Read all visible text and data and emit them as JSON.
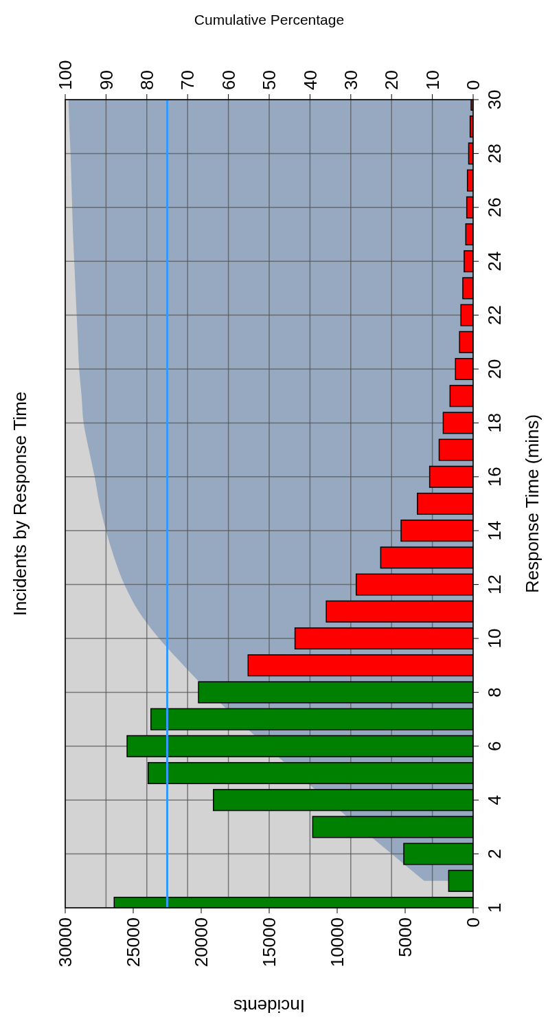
{
  "chart_data": {
    "type": "bar",
    "orientation": "horizontal",
    "title": "Incidents by Response Time",
    "ylabel": "Response Time (mins)",
    "xlabel": "Incidents",
    "x2label": "Cumulative Percentage",
    "categories": [
      "30",
      null,
      "28",
      null,
      "26",
      null,
      "24",
      null,
      "22",
      null,
      "20",
      null,
      "18",
      null,
      "16",
      null,
      "14",
      null,
      "12",
      null,
      "10",
      null,
      "8",
      null,
      "6",
      null,
      "4",
      null,
      "2",
      null,
      "1"
    ],
    "series": [
      {
        "type": "area",
        "axis": "x2",
        "color": "#97a9c0",
        "values": [
          99.2,
          99,
          98.7,
          98.5,
          98.3,
          98.1,
          97.8,
          97.5,
          97.2,
          96.9,
          96.6,
          96,
          95.5,
          94.2,
          92.8,
          91.6,
          90,
          88,
          85.5,
          82,
          77,
          71,
          null,
          null,
          null,
          null,
          null,
          null,
          null,
          12,
          null
        ]
      },
      {
        "type": "bar",
        "colors": [
          "#ff0000",
          "#ff0000",
          "#ff0000",
          "#ff0000",
          "#ff0000",
          "#ff0000",
          "#ff0000",
          "#ff0000",
          "#ff0000",
          "#ff0000",
          "#ff0000",
          "#ff0000",
          "#ff0000",
          "#ff0000",
          "#ff0000",
          "#ff0000",
          "#ff0000",
          "#ff0000",
          "#ff0000",
          "#ff0000",
          "#ff0000",
          "#ff0000",
          "#008000",
          "#008000",
          "#008000",
          "#008000",
          "#008000",
          "#008000",
          "#008000",
          "#008000",
          "#008000"
        ],
        "values": [
          150,
          220,
          330,
          420,
          470,
          540,
          660,
          760,
          900,
          1000,
          1300,
          1700,
          2200,
          2500,
          3200,
          4100,
          5300,
          6800,
          8600,
          10800,
          13100,
          16550,
          20200,
          23700,
          25450,
          23900,
          19100,
          11800,
          5100,
          1800,
          26400
        ]
      }
    ],
    "xlim": [
      30000,
      0
    ],
    "xticks": [
      30000,
      25000,
      20000,
      15000,
      10000,
      5000,
      0
    ],
    "x2lim": [
      100,
      0
    ],
    "x2ticks": [
      100,
      90,
      80,
      70,
      60,
      50,
      40,
      30,
      20,
      10,
      0
    ],
    "ref_lines": [
      {
        "axis": "x2",
        "value": 75,
        "color": "#3399ff"
      }
    ],
    "grid": true
  }
}
